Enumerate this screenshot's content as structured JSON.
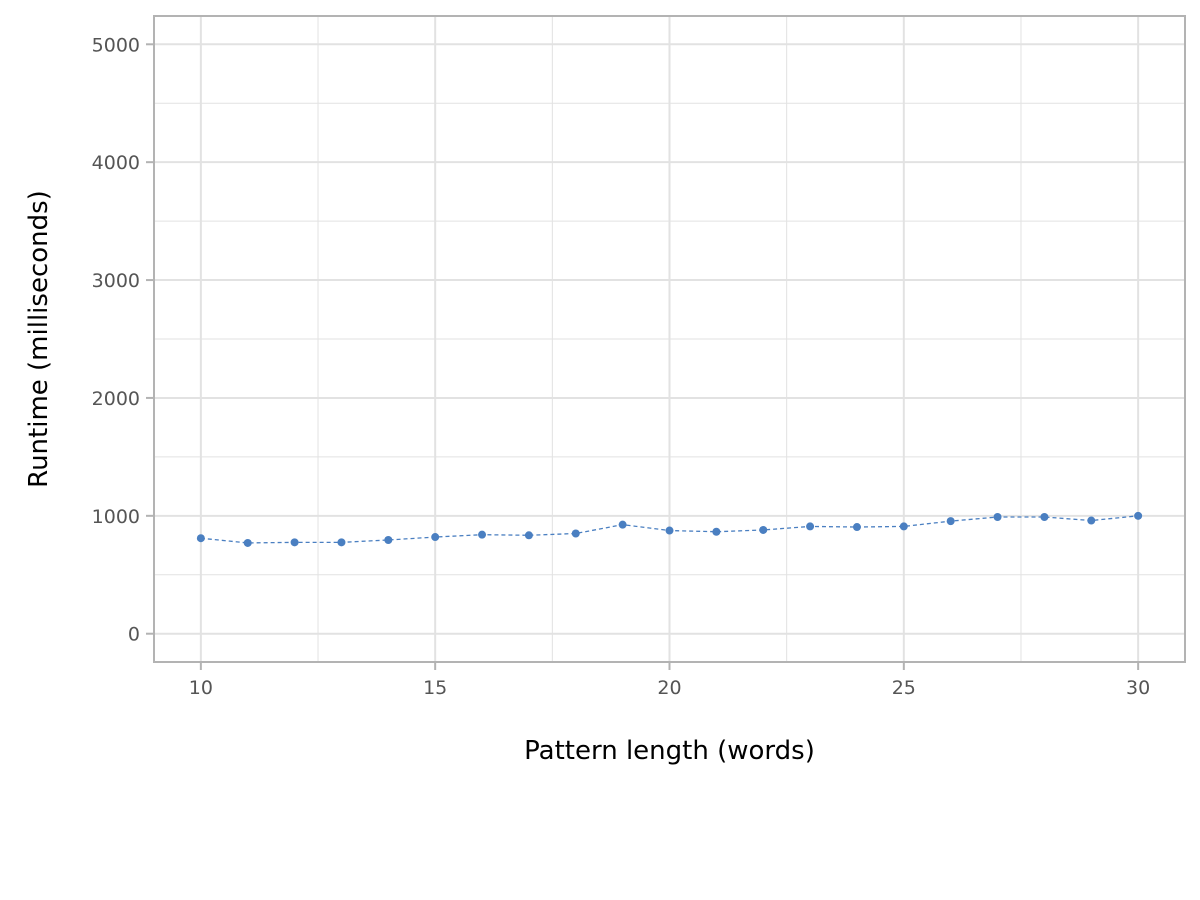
{
  "chart_data": {
    "type": "line",
    "title": "",
    "xlabel": "Pattern length (words)",
    "ylabel": "Runtime (milliseconds)",
    "xlim": [
      9,
      31
    ],
    "ylim": [
      -240,
      5240
    ],
    "x_ticks": [
      10,
      15,
      20,
      25,
      30
    ],
    "y_ticks": [
      0,
      1000,
      2000,
      3000,
      4000,
      5000
    ],
    "x_tick_labels": [
      "10",
      "15",
      "20",
      "25",
      "30"
    ],
    "y_tick_labels": [
      "0",
      "1000",
      "2000",
      "3000",
      "4000",
      "5000"
    ],
    "grid": true,
    "colors": {
      "series": "#4A7FC1",
      "grid": "#E2E2E2",
      "border": "#B3B3B3",
      "tick_text": "#555555"
    },
    "series": [
      {
        "line_style": "dashed",
        "marker": "circle",
        "x": [
          10,
          11,
          12,
          13,
          14,
          15,
          16,
          17,
          18,
          19,
          20,
          21,
          22,
          23,
          24,
          25,
          26,
          27,
          28,
          29,
          30
        ],
        "y": [
          810,
          770,
          775,
          775,
          795,
          820,
          840,
          835,
          850,
          925,
          875,
          865,
          880,
          910,
          905,
          910,
          955,
          990,
          990,
          960,
          1000
        ]
      }
    ]
  }
}
